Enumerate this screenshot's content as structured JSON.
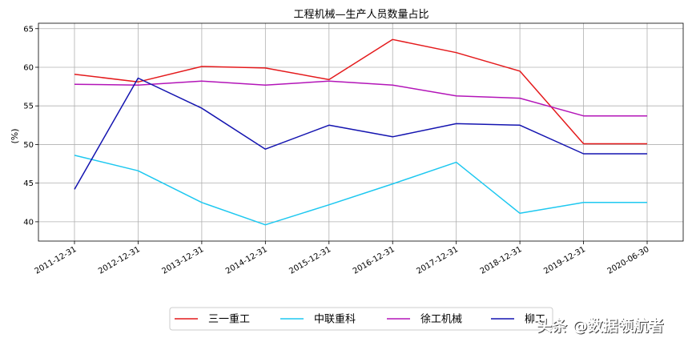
{
  "chart_data": {
    "type": "line",
    "title": "工程机械—生产人员数量占比",
    "xlabel": "",
    "ylabel": "(%)",
    "categories": [
      "2011-12-31",
      "2012-12-31",
      "2013-12-31",
      "2014-12-31",
      "2015-12-31",
      "2016-12-31",
      "2017-12-31",
      "2018-12-31",
      "2019-12-31",
      "2020-06-30"
    ],
    "ylim": [
      37.5,
      65.7
    ],
    "yticks": [
      40,
      45,
      50,
      55,
      60,
      65
    ],
    "grid": true,
    "legend_position": "bottom-center",
    "series": [
      {
        "name": "三一重工",
        "color": "#e41a1c",
        "values": [
          59.1,
          58.1,
          60.1,
          59.9,
          58.4,
          63.6,
          61.9,
          59.5,
          50.1,
          50.1
        ]
      },
      {
        "name": "中联重科",
        "color": "#1ec8f0",
        "values": [
          48.6,
          46.6,
          42.5,
          39.6,
          42.2,
          44.9,
          47.7,
          41.1,
          42.5,
          42.5
        ]
      },
      {
        "name": "徐工机械",
        "color": "#b315b8",
        "values": [
          57.8,
          57.7,
          58.2,
          57.7,
          58.2,
          57.7,
          56.3,
          56.0,
          53.7,
          53.7
        ]
      },
      {
        "name": "柳工",
        "color": "#1414b0",
        "values": [
          44.2,
          58.6,
          54.7,
          49.4,
          52.5,
          51.0,
          52.7,
          52.5,
          48.8,
          48.8
        ]
      }
    ]
  },
  "watermark": "头条 @数据领航者"
}
